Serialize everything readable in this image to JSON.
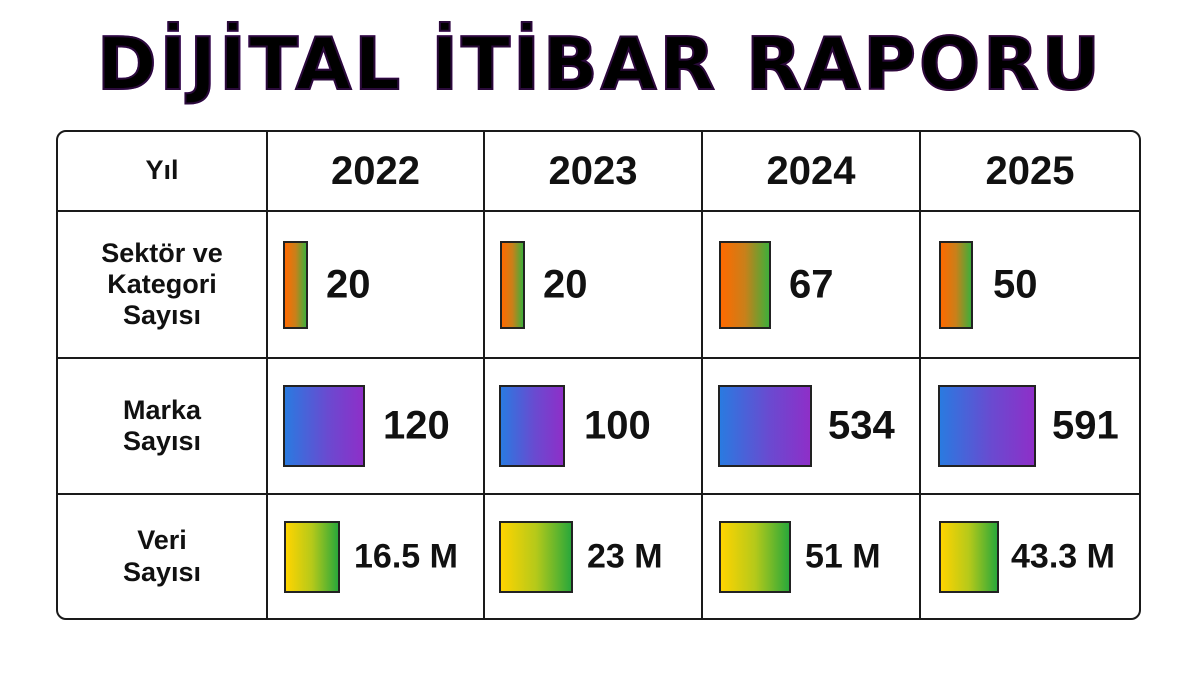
{
  "title": "DİJİTAL İTİBAR RAPORU",
  "header": {
    "label": "Yıl",
    "years": [
      "2022",
      "2023",
      "2024",
      "2025"
    ]
  },
  "rows": [
    {
      "label": [
        "Sektör ve",
        "Kategori",
        "Sayısı"
      ],
      "values": [
        "20",
        "20",
        "67",
        "50"
      ],
      "numbers": [
        20,
        20,
        67,
        50
      ]
    },
    {
      "label": [
        "Marka",
        "Sayısı"
      ],
      "values": [
        "120",
        "100",
        "534",
        "591"
      ],
      "numbers": [
        120,
        100,
        534,
        591
      ]
    },
    {
      "label": [
        "Veri",
        "Sayısı"
      ],
      "values": [
        "16.5 M",
        "23 M",
        "51 M",
        "43.3 M"
      ],
      "numbers": [
        16.5,
        23,
        51,
        43.3
      ]
    }
  ],
  "colors": {
    "title_gradient": [
      "#8a2be2",
      "#ff3d9a"
    ],
    "row1_bar": [
      "#ff6a00",
      "#3fae3a"
    ],
    "row2_bar": [
      "#2a7ae0",
      "#8e2fc8"
    ],
    "row3_bar": [
      "#ffd400",
      "#2aa83a"
    ]
  }
}
